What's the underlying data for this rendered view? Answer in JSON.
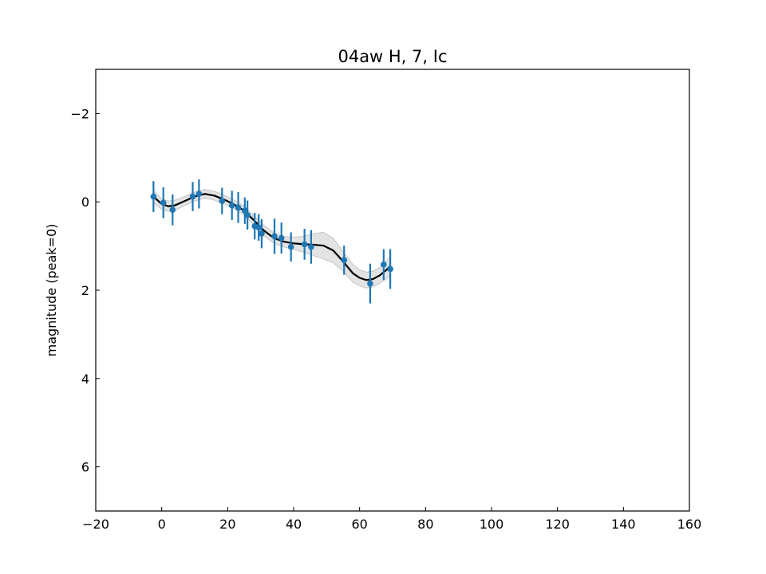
{
  "chart_data": {
    "type": "scatter",
    "title": "04aw H, 7, Ic",
    "xlabel": "",
    "ylabel": "magnitude (peak=0)",
    "xlim": [
      -20,
      160
    ],
    "ylim": [
      7,
      -3
    ],
    "y_inverted": true,
    "x_ticks": [
      -20,
      0,
      20,
      40,
      60,
      80,
      100,
      120,
      140,
      160
    ],
    "y_ticks": [
      -2,
      0,
      2,
      4,
      6
    ],
    "grid": false,
    "legend": "none",
    "colors": {
      "points": "#1f77b4",
      "fit_line": "#000000",
      "fit_band": "#c8c8c8"
    },
    "series": [
      {
        "kind": "errorbar",
        "x": [
          -2.5,
          0.5,
          3.3,
          9.4,
          11.3,
          18.3,
          21.3,
          23.2,
          25.2,
          26.0,
          28.2,
          29.4,
          30.3,
          34.2,
          36.3,
          39.2,
          43.3,
          45.3,
          55.3,
          63.2,
          67.3,
          69.3
        ],
        "y": [
          -0.12,
          0.02,
          0.18,
          -0.12,
          -0.18,
          -0.02,
          0.08,
          0.13,
          0.2,
          0.3,
          0.55,
          0.58,
          0.72,
          0.78,
          0.82,
          1.02,
          0.96,
          1.02,
          1.32,
          1.85,
          1.42,
          1.52
        ],
        "yerr": [
          0.35,
          0.35,
          0.35,
          0.33,
          0.33,
          0.3,
          0.33,
          0.35,
          0.3,
          0.33,
          0.3,
          0.3,
          0.33,
          0.4,
          0.35,
          0.33,
          0.35,
          0.38,
          0.33,
          0.45,
          0.35,
          0.45
        ]
      },
      {
        "kind": "fit",
        "x": [
          -2.5,
          0,
          2,
          4,
          7,
          10,
          13,
          16,
          19,
          22,
          25,
          28,
          31,
          34,
          37,
          40,
          43,
          46,
          49,
          52,
          55,
          58,
          60,
          62,
          64,
          66,
          68,
          69.3
        ],
        "y": [
          -0.12,
          0.05,
          0.1,
          0.08,
          -0.02,
          -0.12,
          -0.18,
          -0.14,
          -0.05,
          0.06,
          0.2,
          0.42,
          0.65,
          0.82,
          0.9,
          0.94,
          0.96,
          0.97,
          0.99,
          1.1,
          1.35,
          1.62,
          1.72,
          1.77,
          1.75,
          1.67,
          1.55,
          1.45
        ],
        "band": [
          0.14,
          0.12,
          0.12,
          0.12,
          0.1,
          0.1,
          0.1,
          0.1,
          0.1,
          0.1,
          0.1,
          0.1,
          0.12,
          0.12,
          0.12,
          0.14,
          0.18,
          0.25,
          0.3,
          0.28,
          0.22,
          0.2,
          0.18,
          0.18,
          0.18,
          0.18,
          0.2,
          0.22
        ]
      }
    ]
  }
}
